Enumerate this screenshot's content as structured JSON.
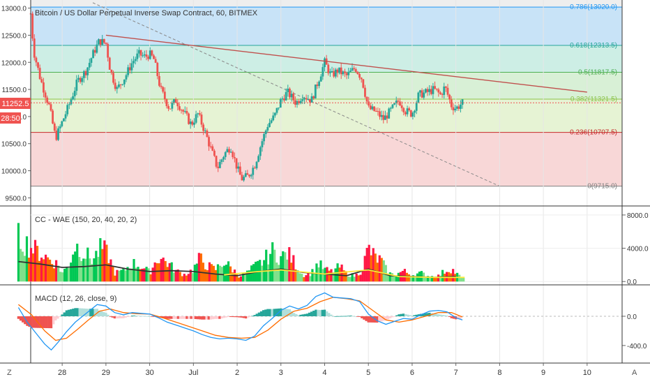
{
  "symbol_title": "Bitcoin / US Dollar Perpetual Inverse Swap Contract, 60, BITMEX",
  "price_badge": "11252.5",
  "countdown_badge": "28:50",
  "left_axis_label": "Z",
  "right_axis_label": "A",
  "colors": {
    "bull": "#26a69a",
    "bear": "#ef5350",
    "trendline": "#c0504d",
    "dashed_line": "#888888",
    "macd_line": "#2196f3",
    "signal_line": "#ff6d00",
    "wae_green": "#00c853",
    "wae_red": "#ff1744",
    "wae_orange": "#ff6d00",
    "wae_explosion": "#333333",
    "wae_deadzone": "#ffeb3b"
  },
  "chart_data": [
    {
      "type": "candlestick",
      "title": "Bitcoin / US Dollar Perpetual Inverse Swap Contract, 60, BITMEX",
      "x_axis_ticks": [
        "28",
        "29",
        "30",
        "Jul",
        "2",
        "3",
        "4",
        "5",
        "6",
        "7",
        "8",
        "9",
        "10"
      ],
      "y_axis_ticks": [
        "13000.0",
        "12500.0",
        "12000.0",
        "11500.0",
        "11000.0",
        "10500.0",
        "10000.0",
        "9500.0"
      ],
      "ylim": [
        9350,
        13150
      ],
      "last_price": 11252.5,
      "fibonacci_levels": [
        {
          "ratio": 0.786,
          "value": 13020.0,
          "label": "0.786(13020.0)",
          "color": "#2196f3",
          "fill": "#c8e3f7"
        },
        {
          "ratio": 0.618,
          "value": 12313.5,
          "label": "0.618(12313.5)",
          "color": "#26a69a",
          "fill": "#cdeee5"
        },
        {
          "ratio": 0.5,
          "value": 11817.5,
          "label": "0.5(11817.5)",
          "color": "#4caf50",
          "fill": "#d8f0d6"
        },
        {
          "ratio": 0.382,
          "value": 11321.5,
          "label": "0.382(11321.5)",
          "color": "#8bc34a",
          "fill": "#e6f3d4"
        },
        {
          "ratio": 0.236,
          "value": 10707.5,
          "label": "0.236(10707.5)",
          "color": "#c62828",
          "fill": "#f8d7d7"
        },
        {
          "ratio": 0,
          "value": 9715.0,
          "label": "0(9715.0)",
          "color": "#808080",
          "fill": "#ffffff"
        }
      ],
      "day_positions": [
        {
          "label": "28",
          "day": 1
        },
        {
          "label": "29",
          "day": 2
        },
        {
          "label": "30",
          "day": 3
        },
        {
          "label": "Jul",
          "day": 4
        },
        {
          "label": "2",
          "day": 5
        },
        {
          "label": "3",
          "day": 6
        },
        {
          "label": "4",
          "day": 7
        },
        {
          "label": "5",
          "day": 8
        },
        {
          "label": "6",
          "day": 9
        },
        {
          "label": "7",
          "day": 10
        },
        {
          "label": "8",
          "day": 11
        },
        {
          "label": "9",
          "day": 12
        },
        {
          "label": "10",
          "day": 13
        }
      ],
      "close_path": [
        [
          0.28,
          12900
        ],
        [
          0.35,
          12200
        ],
        [
          0.5,
          11700
        ],
        [
          0.7,
          11200
        ],
        [
          0.85,
          10600
        ],
        [
          1.0,
          10900
        ],
        [
          1.15,
          11200
        ],
        [
          1.35,
          11650
        ],
        [
          1.55,
          11850
        ],
        [
          1.7,
          12150
        ],
        [
          1.85,
          12400
        ],
        [
          2.0,
          12350
        ],
        [
          2.1,
          11850
        ],
        [
          2.25,
          11500
        ],
        [
          2.45,
          11750
        ],
        [
          2.6,
          12000
        ],
        [
          2.75,
          12150
        ],
        [
          2.9,
          12100
        ],
        [
          3.0,
          12150
        ],
        [
          3.1,
          12050
        ],
        [
          3.25,
          11500
        ],
        [
          3.45,
          11150
        ],
        [
          3.6,
          11300
        ],
        [
          3.8,
          11050
        ],
        [
          3.95,
          10850
        ],
        [
          4.1,
          11050
        ],
        [
          4.25,
          10750
        ],
        [
          4.4,
          10400
        ],
        [
          4.55,
          10050
        ],
        [
          4.7,
          10300
        ],
        [
          4.85,
          10450
        ],
        [
          5.0,
          10050
        ],
        [
          5.1,
          9850
        ],
        [
          5.25,
          9900
        ],
        [
          5.4,
          10100
        ],
        [
          5.55,
          10500
        ],
        [
          5.7,
          10850
        ],
        [
          5.85,
          11000
        ],
        [
          6.0,
          11300
        ],
        [
          6.15,
          11450
        ],
        [
          6.35,
          11250
        ],
        [
          6.5,
          11400
        ],
        [
          6.7,
          11300
        ],
        [
          6.85,
          11650
        ],
        [
          7.0,
          12000
        ],
        [
          7.15,
          11750
        ],
        [
          7.3,
          11850
        ],
        [
          7.5,
          11750
        ],
        [
          7.7,
          11900
        ],
        [
          7.85,
          11700
        ],
        [
          8.0,
          11150
        ],
        [
          8.15,
          11100
        ],
        [
          8.35,
          10950
        ],
        [
          8.5,
          11100
        ],
        [
          8.7,
          11300
        ],
        [
          8.85,
          11100
        ],
        [
          9.0,
          11050
        ],
        [
          9.15,
          11400
        ],
        [
          9.35,
          11450
        ],
        [
          9.5,
          11500
        ],
        [
          9.65,
          11400
        ],
        [
          9.75,
          11550
        ],
        [
          9.9,
          11200
        ],
        [
          10.0,
          11150
        ],
        [
          10.15,
          11250
        ]
      ],
      "trendlines": [
        {
          "style": "solid",
          "color": "#c0504d",
          "points": [
            [
              2.0,
              12500
            ],
            [
              13.0,
              11450
            ]
          ]
        },
        {
          "style": "dashed",
          "color": "#888888",
          "points": [
            [
              1.7,
              13100
            ],
            [
              11.0,
              9715
            ]
          ]
        }
      ]
    },
    {
      "type": "bar",
      "title": "CC - WAE (150, 20, 40, 20, 2)",
      "y_axis_ticks": [
        "8000.0",
        "4000.0",
        "0.0"
      ],
      "ylim": [
        -400,
        9000
      ],
      "envelope": [
        [
          0.0,
          6200
        ],
        [
          0.3,
          4800
        ],
        [
          0.6,
          3600
        ],
        [
          0.9,
          2400
        ],
        [
          1.0,
          1200
        ],
        [
          1.15,
          2300
        ],
        [
          1.3,
          5200
        ],
        [
          1.5,
          4000
        ],
        [
          1.7,
          3100
        ],
        [
          1.9,
          4800
        ],
        [
          2.05,
          3800
        ],
        [
          2.2,
          1200
        ],
        [
          2.4,
          1500
        ],
        [
          2.6,
          2600
        ],
        [
          2.8,
          2200
        ],
        [
          3.0,
          1300
        ],
        [
          3.2,
          3500
        ],
        [
          3.4,
          2700
        ],
        [
          3.6,
          1500
        ],
        [
          3.8,
          1000
        ],
        [
          4.0,
          1700
        ],
        [
          4.15,
          3300
        ],
        [
          4.3,
          2300
        ],
        [
          4.5,
          1700
        ],
        [
          4.7,
          2800
        ],
        [
          4.9,
          1700
        ],
        [
          5.05,
          800
        ],
        [
          5.2,
          1100
        ],
        [
          5.4,
          2100
        ],
        [
          5.6,
          2900
        ],
        [
          5.8,
          4300
        ],
        [
          6.0,
          3400
        ],
        [
          6.15,
          4000
        ],
        [
          6.3,
          2800
        ],
        [
          6.5,
          900
        ],
        [
          6.7,
          1200
        ],
        [
          6.85,
          2600
        ],
        [
          7.0,
          1700
        ],
        [
          7.15,
          1400
        ],
        [
          7.35,
          2100
        ],
        [
          7.5,
          1100
        ],
        [
          7.7,
          800
        ],
        [
          7.85,
          1600
        ],
        [
          8.0,
          4700
        ],
        [
          8.15,
          3400
        ],
        [
          8.3,
          2900
        ],
        [
          8.45,
          1200
        ],
        [
          8.6,
          900
        ],
        [
          8.8,
          1500
        ],
        [
          9.0,
          900
        ],
        [
          9.2,
          1200
        ],
        [
          9.4,
          700
        ],
        [
          9.6,
          800
        ],
        [
          9.75,
          1500
        ],
        [
          9.9,
          1800
        ],
        [
          10.05,
          900
        ],
        [
          10.2,
          300
        ]
      ],
      "explosion_line": [
        [
          0.0,
          2400
        ],
        [
          0.5,
          2100
        ],
        [
          1.0,
          1700
        ],
        [
          1.5,
          1800
        ],
        [
          2.0,
          2000
        ],
        [
          2.5,
          1500
        ],
        [
          3.0,
          1200
        ],
        [
          3.5,
          1300
        ],
        [
          4.0,
          1200
        ],
        [
          4.5,
          900
        ],
        [
          5.0,
          700
        ],
        [
          5.5,
          1200
        ],
        [
          6.0,
          1500
        ],
        [
          6.5,
          1100
        ],
        [
          7.0,
          900
        ],
        [
          7.5,
          700
        ],
        [
          8.0,
          1500
        ],
        [
          8.5,
          700
        ],
        [
          9.0,
          600
        ],
        [
          9.5,
          500
        ],
        [
          10.0,
          600
        ]
      ],
      "deadzone_line": [
        [
          4.7,
          800
        ],
        [
          5.5,
          1200
        ],
        [
          6.0,
          1400
        ],
        [
          7.0,
          900
        ],
        [
          8.0,
          1400
        ],
        [
          8.7,
          600
        ],
        [
          9.5,
          500
        ],
        [
          10.2,
          500
        ]
      ]
    },
    {
      "type": "line",
      "title": "MACD (12, 26, close, 9)",
      "y_axis_ticks": [
        "0.0",
        "-400.0"
      ],
      "ylim": [
        -640,
        420
      ],
      "series": [
        {
          "key": "macd",
          "color": "#2196f3",
          "points": [
            [
              0.0,
              120
            ],
            [
              0.2,
              -80
            ],
            [
              0.4,
              -230
            ],
            [
              0.6,
              -380
            ],
            [
              0.75,
              -460
            ],
            [
              0.9,
              -360
            ],
            [
              1.1,
              -210
            ],
            [
              1.3,
              -80
            ],
            [
              1.55,
              40
            ],
            [
              1.8,
              160
            ],
            [
              2.0,
              140
            ],
            [
              2.2,
              50
            ],
            [
              2.4,
              20
            ],
            [
              2.6,
              50
            ],
            [
              2.8,
              40
            ],
            [
              3.0,
              30
            ],
            [
              3.2,
              -20
            ],
            [
              3.4,
              -80
            ],
            [
              3.6,
              -120
            ],
            [
              3.8,
              -160
            ],
            [
              4.0,
              -200
            ],
            [
              4.2,
              -250
            ],
            [
              4.4,
              -290
            ],
            [
              4.6,
              -310
            ],
            [
              4.8,
              -300
            ],
            [
              5.0,
              -310
            ],
            [
              5.2,
              -330
            ],
            [
              5.4,
              -270
            ],
            [
              5.6,
              -130
            ],
            [
              5.8,
              -30
            ],
            [
              6.0,
              80
            ],
            [
              6.2,
              140
            ],
            [
              6.4,
              100
            ],
            [
              6.6,
              150
            ],
            [
              6.8,
              270
            ],
            [
              7.0,
              320
            ],
            [
              7.2,
              260
            ],
            [
              7.4,
              250
            ],
            [
              7.6,
              240
            ],
            [
              7.8,
              200
            ],
            [
              8.0,
              30
            ],
            [
              8.2,
              -60
            ],
            [
              8.4,
              -110
            ],
            [
              8.6,
              -70
            ],
            [
              8.8,
              -30
            ],
            [
              9.0,
              -40
            ],
            [
              9.2,
              20
            ],
            [
              9.4,
              70
            ],
            [
              9.6,
              80
            ],
            [
              9.8,
              60
            ],
            [
              10.0,
              -20
            ],
            [
              10.15,
              -50
            ]
          ]
        },
        {
          "key": "signal",
          "color": "#ff6d00",
          "points": [
            [
              0.0,
              160
            ],
            [
              0.3,
              20
            ],
            [
              0.6,
              -200
            ],
            [
              0.85,
              -330
            ],
            [
              1.1,
              -300
            ],
            [
              1.35,
              -180
            ],
            [
              1.6,
              -50
            ],
            [
              1.85,
              70
            ],
            [
              2.1,
              100
            ],
            [
              2.4,
              50
            ],
            [
              2.7,
              35
            ],
            [
              3.0,
              30
            ],
            [
              3.3,
              -20
            ],
            [
              3.6,
              -80
            ],
            [
              3.9,
              -140
            ],
            [
              4.2,
              -200
            ],
            [
              4.5,
              -260
            ],
            [
              4.8,
              -290
            ],
            [
              5.1,
              -300
            ],
            [
              5.4,
              -290
            ],
            [
              5.7,
              -190
            ],
            [
              6.0,
              -40
            ],
            [
              6.3,
              70
            ],
            [
              6.6,
              110
            ],
            [
              6.9,
              200
            ],
            [
              7.2,
              260
            ],
            [
              7.5,
              240
            ],
            [
              7.8,
              210
            ],
            [
              8.1,
              80
            ],
            [
              8.4,
              -50
            ],
            [
              8.7,
              -80
            ],
            [
              9.0,
              -50
            ],
            [
              9.3,
              0
            ],
            [
              9.6,
              50
            ],
            [
              9.9,
              50
            ],
            [
              10.15,
              -10
            ]
          ]
        }
      ]
    }
  ]
}
